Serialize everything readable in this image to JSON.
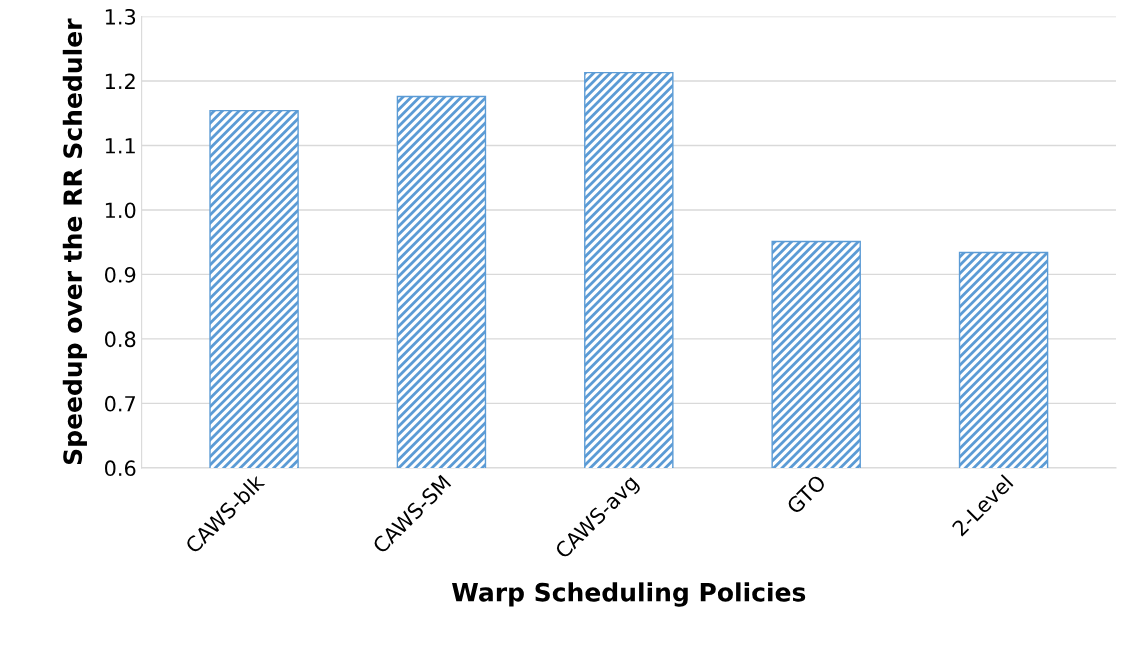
{
  "chart_data": {
    "type": "bar",
    "xlabel": "Warp Scheduling Policies",
    "ylabel": "Speedup over the RR Scheduler",
    "categories": [
      "CAWS-blk",
      "CAWS-SM",
      "CAWS-avg",
      "GTO",
      "2-Level"
    ],
    "values": [
      1.154,
      1.176,
      1.213,
      0.951,
      0.934
    ],
    "color": "#5b9bd5",
    "ylim": [
      0.6,
      1.3
    ],
    "yticks": [
      {
        "value": 0.6,
        "label": "0.6"
      },
      {
        "value": 0.7,
        "label": "0.7"
      },
      {
        "value": 0.8,
        "label": "0.8"
      },
      {
        "value": 0.9,
        "label": "0.9"
      },
      {
        "value": 1.0,
        "label": "1.0"
      },
      {
        "value": 1.1,
        "label": "1.1"
      },
      {
        "value": 1.2,
        "label": "1.2"
      },
      {
        "value": 1.3,
        "label": "1.3"
      }
    ],
    "grid": "y"
  }
}
